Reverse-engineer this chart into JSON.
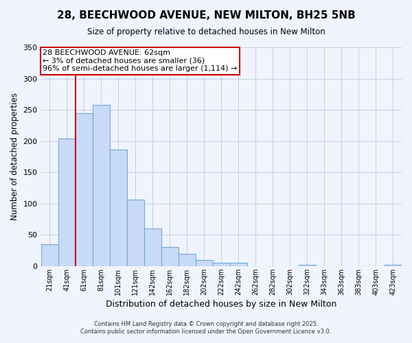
{
  "title": "28, BEECHWOOD AVENUE, NEW MILTON, BH25 5NB",
  "subtitle": "Size of property relative to detached houses in New Milton",
  "xlabel": "Distribution of detached houses by size in New Milton",
  "ylabel": "Number of detached properties",
  "bar_labels": [
    "21sqm",
    "41sqm",
    "61sqm",
    "81sqm",
    "101sqm",
    "121sqm",
    "142sqm",
    "162sqm",
    "182sqm",
    "202sqm",
    "222sqm",
    "242sqm",
    "262sqm",
    "282sqm",
    "302sqm",
    "322sqm",
    "343sqm",
    "363sqm",
    "383sqm",
    "403sqm",
    "423sqm"
  ],
  "bar_values": [
    35,
    204,
    245,
    258,
    186,
    106,
    60,
    30,
    20,
    10,
    5,
    5,
    0,
    0,
    0,
    2,
    0,
    0,
    0,
    0,
    2
  ],
  "bar_color": "#c9daf8",
  "bar_edge_color": "#6fa8dc",
  "ylim": [
    0,
    350
  ],
  "yticks": [
    0,
    50,
    100,
    150,
    200,
    250,
    300,
    350
  ],
  "vline_color": "#cc0000",
  "vline_bar_index": 2,
  "annotation_title": "28 BEECHWOOD AVENUE: 62sqm",
  "annotation_line1": "← 3% of detached houses are smaller (36)",
  "annotation_line2": "96% of semi-detached houses are larger (1,114) →",
  "annotation_box_color": "#cc0000",
  "footer1": "Contains HM Land Registry data © Crown copyright and database right 2025.",
  "footer2": "Contains public sector information licensed under the Open Government Licence v3.0.",
  "bg_color": "#f0f4ff"
}
